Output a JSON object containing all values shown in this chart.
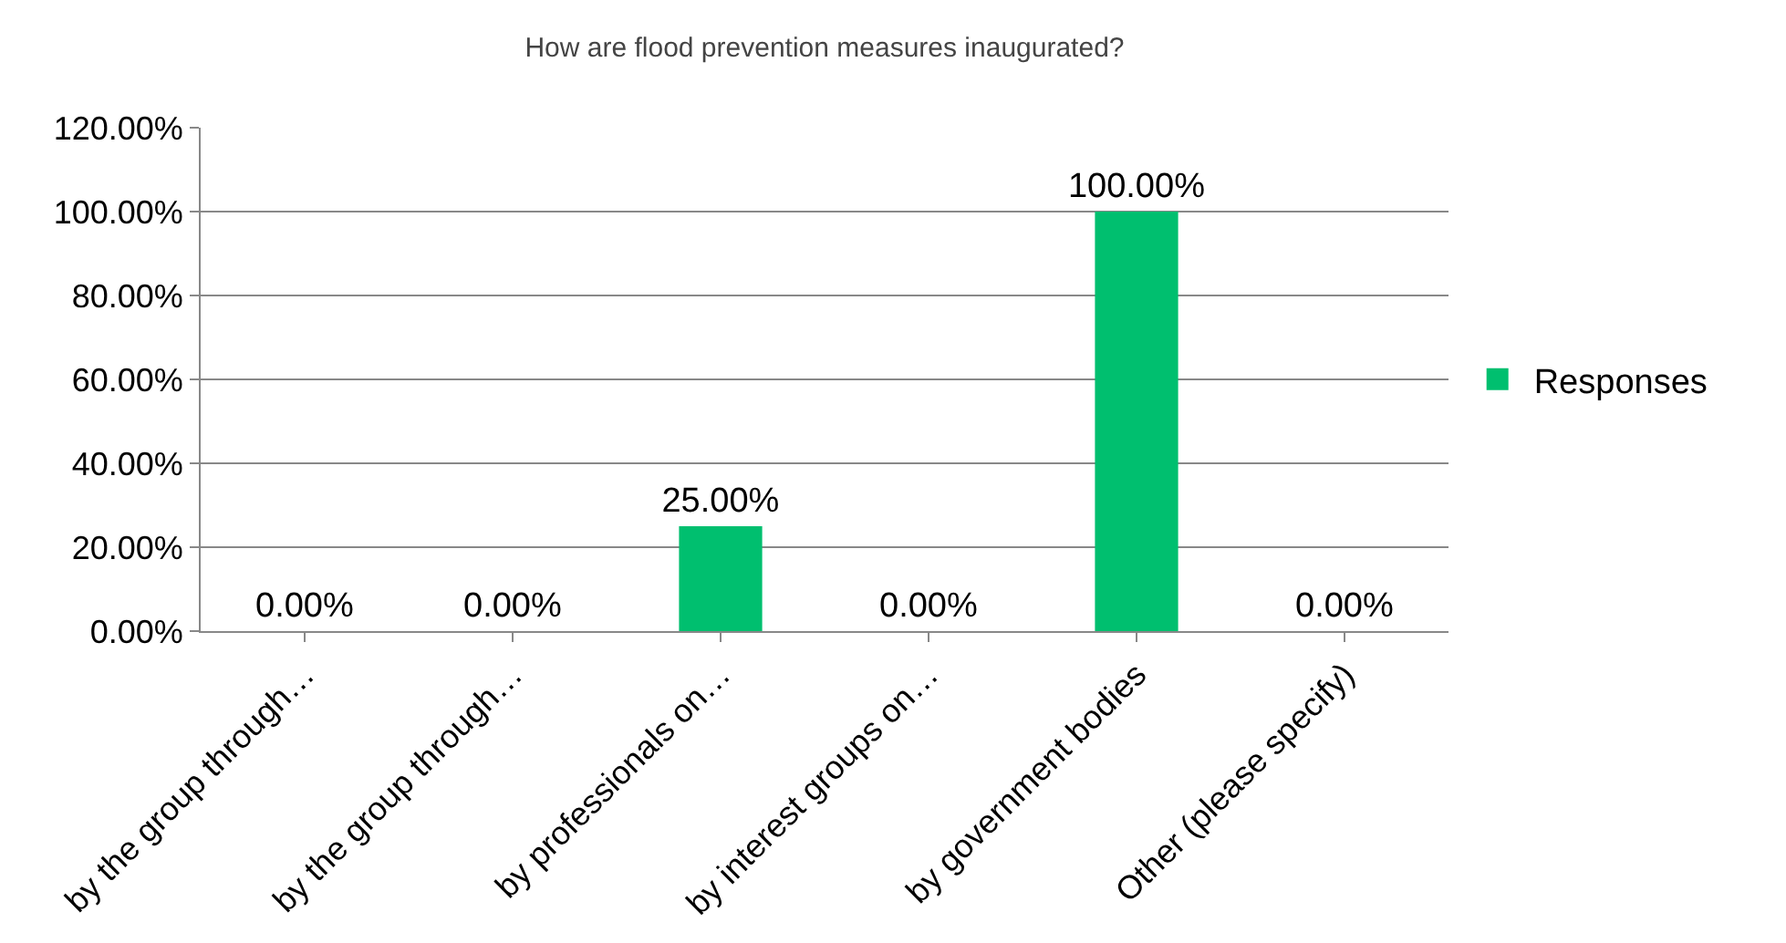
{
  "chart_data": {
    "type": "bar",
    "title": "How are flood prevention measures inaugurated?",
    "categories": [
      "by the group through…",
      "by the group through…",
      "by professionals on…",
      "by interest groups on…",
      "by government bodies",
      "Other (please specify)"
    ],
    "series": [
      {
        "name": "Responses",
        "color": "#00bf6f",
        "values": [
          0,
          0,
          25,
          0,
          100,
          0
        ],
        "value_labels": [
          "0.00%",
          "0.00%",
          "25.00%",
          "0.00%",
          "100.00%",
          "0.00%"
        ]
      }
    ],
    "ylim": [
      0,
      120
    ],
    "yticks": [
      {
        "value": 0,
        "label": "0.00%"
      },
      {
        "value": 20,
        "label": "20.00%"
      },
      {
        "value": 40,
        "label": "40.00%"
      },
      {
        "value": 60,
        "label": "60.00%"
      },
      {
        "value": 80,
        "label": "80.00%"
      },
      {
        "value": 100,
        "label": "100.00%"
      },
      {
        "value": 120,
        "label": "120.00%"
      }
    ],
    "grid": "y",
    "legend": "right"
  }
}
